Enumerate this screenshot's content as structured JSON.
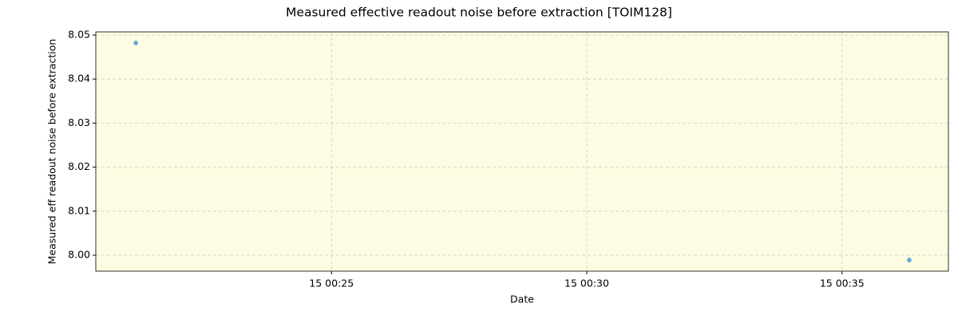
{
  "chart_data": {
    "type": "scatter",
    "title": "Measured effective readout noise before extraction [TOIM128]",
    "x_label": "Date",
    "y_label": "Measured eff readout noise before extraction",
    "x": [
      "15 00:21:10",
      "15 00:36:19"
    ],
    "series": [
      {
        "name": "TOIM128",
        "color": "#6baed6",
        "values": [
          8.0482,
          7.9989
        ]
      }
    ],
    "xlim": [
      "15 00:20:23",
      "15 00:37:05"
    ],
    "xticks": [
      "15 00:25",
      "15 00:30",
      "15 00:35"
    ],
    "ylim": [
      7.99638,
      8.05072
    ],
    "yticks": [
      {
        "value": 8,
        "label": "8.00"
      },
      8.01,
      8.02,
      8.03,
      8.04,
      8.05
    ],
    "grid": true,
    "plot_background": "#fdfbe1"
  }
}
